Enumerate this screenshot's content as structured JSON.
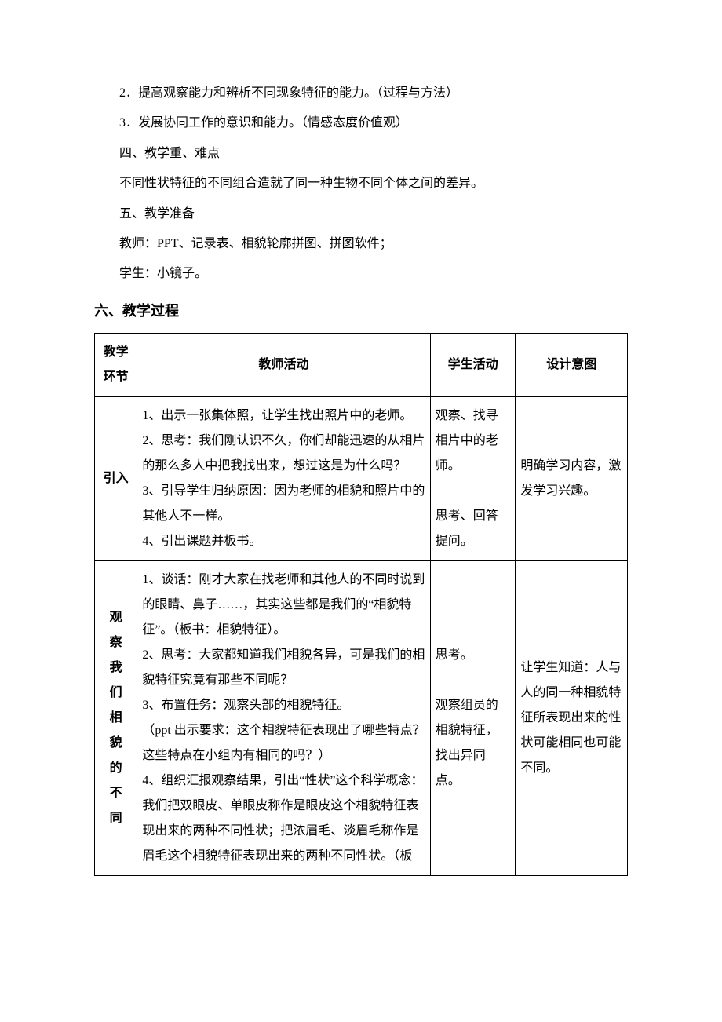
{
  "text_color": "#000000",
  "bg_color": "#ffffff",
  "border_color": "#000000",
  "body_fontsize": 16,
  "heading_fontsize": 18,
  "line_height_para": 2.4,
  "line_height_cell": 2.0,
  "paragraphs": {
    "p1": "2．提高观察能力和辨析不同现象特征的能力。（过程与方法）",
    "p2": "3．发展协同工作的意识和能力。（情感态度价值观）",
    "p3": "四、教学重、难点",
    "p4": "不同性状特征的不同组合造就了同一种生物不同个体之间的差异。",
    "p5": "五、教学准备",
    "p6": "教师：PPT、记录表、相貌轮廓拼图、拼图软件；",
    "p7": "学生：小镜子。"
  },
  "section_heading": "六、教学过程",
  "table": {
    "col_widths": [
      "8%",
      "55%",
      "16%",
      "21%"
    ],
    "headers": {
      "h1": "教学环节",
      "h2": "教师活动",
      "h3": "学生活动",
      "h4": "设计意图"
    },
    "rows": [
      {
        "stage": "引入",
        "teacher": "1、出示一张集体照，让学生找出照片中的老师。\n2、思考：我们刚认识不久，你们却能迅速的从相片的那么多人中把我找出来，想过这是为什么吗？\n3、引导学生归纳原因：因为老师的相貌和照片中的其他人不一样。\n4、引出课题并板书。",
        "student": "观察、找寻相片中的老师。\n\n思考、回答提问。",
        "design": "明确学习内容，激发学习兴趣。"
      },
      {
        "stage": "观察我们相貌的不同",
        "teacher": "1、谈话：刚才大家在找老师和其他人的不同时说到的眼睛、鼻子……，其实这些都是我们的“相貌特征”。（板书：相貌特征）。\n2、思考：大家都知道我们相貌各异，可是我们的相貌特征究竟有那些不同呢？\n3、布置任务：观察头部的相貌特征。\n（ppt 出示要求：这个相貌特征表现出了哪些特点？这些特点在小组内有相同的吗？）\n4、组织汇报观察结果，引出“性状”这个科学概念：我们把双眼皮、单眼皮称作是眼皮这个相貌特征表现出来的两种不同性状；把浓眉毛、淡眉毛称作是眉毛这个相貌特征表现出来的两种不同性状。（板",
        "student": "思考。\n\n观察组员的相貌特征，找出异同点。",
        "design": "让学生知道：人与人的同一种相貌特征所表现出来的性状可能相同也可能不同。"
      }
    ]
  }
}
